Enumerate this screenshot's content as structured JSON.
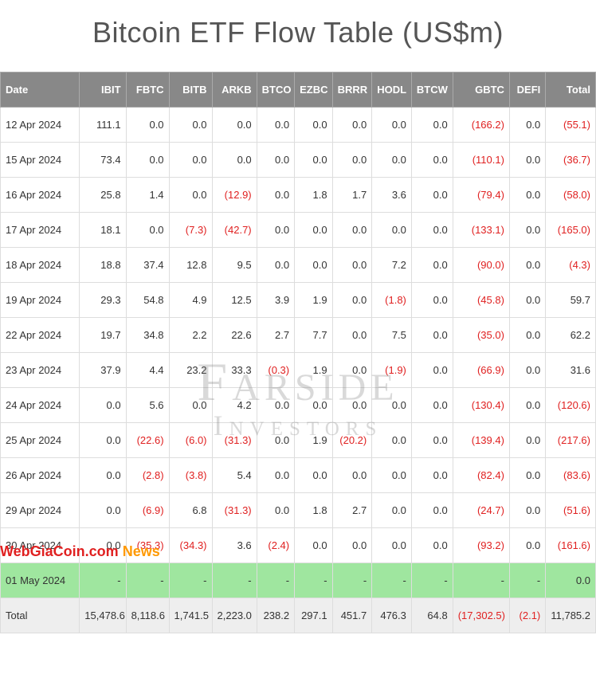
{
  "title": "Bitcoin ETF Flow Table (US$m)",
  "watermark": {
    "line1": "Farside",
    "line2": "Investors"
  },
  "overlay": {
    "brand": "WebGiaCoin.com",
    "news": " News"
  },
  "table": {
    "columns": [
      {
        "key": "date",
        "label": "Date",
        "class": "date-col"
      },
      {
        "key": "ibit",
        "label": "IBIT",
        "class": "c-ibit"
      },
      {
        "key": "fbtc",
        "label": "FBTC",
        "class": "c-fbtc"
      },
      {
        "key": "bitb",
        "label": "BITB",
        "class": "c-bitb"
      },
      {
        "key": "arkb",
        "label": "ARKB",
        "class": "c-arkb"
      },
      {
        "key": "btco",
        "label": "BTCO",
        "class": "c-btco"
      },
      {
        "key": "ezbc",
        "label": "EZBC",
        "class": "c-ezbc"
      },
      {
        "key": "brrr",
        "label": "BRRR",
        "class": "c-brrr"
      },
      {
        "key": "hodl",
        "label": "HODL",
        "class": "c-hodl"
      },
      {
        "key": "btcw",
        "label": "BTCW",
        "class": "c-btcw"
      },
      {
        "key": "gbtc",
        "label": "GBTC",
        "class": "c-gbtc"
      },
      {
        "key": "defi",
        "label": "DEFI",
        "class": "c-defi"
      },
      {
        "key": "total",
        "label": "Total",
        "class": "c-total"
      }
    ],
    "rows": [
      {
        "date": "12 Apr 2024",
        "cells": [
          "111.1",
          "0.0",
          "0.0",
          "0.0",
          "0.0",
          "0.0",
          "0.0",
          "0.0",
          "0.0",
          "(166.2)",
          "0.0",
          "(55.1)"
        ]
      },
      {
        "date": "15 Apr 2024",
        "cells": [
          "73.4",
          "0.0",
          "0.0",
          "0.0",
          "0.0",
          "0.0",
          "0.0",
          "0.0",
          "0.0",
          "(110.1)",
          "0.0",
          "(36.7)"
        ]
      },
      {
        "date": "16 Apr 2024",
        "cells": [
          "25.8",
          "1.4",
          "0.0",
          "(12.9)",
          "0.0",
          "1.8",
          "1.7",
          "3.6",
          "0.0",
          "(79.4)",
          "0.0",
          "(58.0)"
        ]
      },
      {
        "date": "17 Apr 2024",
        "cells": [
          "18.1",
          "0.0",
          "(7.3)",
          "(42.7)",
          "0.0",
          "0.0",
          "0.0",
          "0.0",
          "0.0",
          "(133.1)",
          "0.0",
          "(165.0)"
        ]
      },
      {
        "date": "18 Apr 2024",
        "cells": [
          "18.8",
          "37.4",
          "12.8",
          "9.5",
          "0.0",
          "0.0",
          "0.0",
          "7.2",
          "0.0",
          "(90.0)",
          "0.0",
          "(4.3)"
        ]
      },
      {
        "date": "19 Apr 2024",
        "cells": [
          "29.3",
          "54.8",
          "4.9",
          "12.5",
          "3.9",
          "1.9",
          "0.0",
          "(1.8)",
          "0.0",
          "(45.8)",
          "0.0",
          "59.7"
        ]
      },
      {
        "date": "22 Apr 2024",
        "cells": [
          "19.7",
          "34.8",
          "2.2",
          "22.6",
          "2.7",
          "7.7",
          "0.0",
          "7.5",
          "0.0",
          "(35.0)",
          "0.0",
          "62.2"
        ]
      },
      {
        "date": "23 Apr 2024",
        "cells": [
          "37.9",
          "4.4",
          "23.2",
          "33.3",
          "(0.3)",
          "1.9",
          "0.0",
          "(1.9)",
          "0.0",
          "(66.9)",
          "0.0",
          "31.6"
        ]
      },
      {
        "date": "24 Apr 2024",
        "cells": [
          "0.0",
          "5.6",
          "0.0",
          "4.2",
          "0.0",
          "0.0",
          "0.0",
          "0.0",
          "0.0",
          "(130.4)",
          "0.0",
          "(120.6)"
        ]
      },
      {
        "date": "25 Apr 2024",
        "cells": [
          "0.0",
          "(22.6)",
          "(6.0)",
          "(31.3)",
          "0.0",
          "1.9",
          "(20.2)",
          "0.0",
          "0.0",
          "(139.4)",
          "0.0",
          "(217.6)"
        ]
      },
      {
        "date": "26 Apr 2024",
        "cells": [
          "0.0",
          "(2.8)",
          "(3.8)",
          "5.4",
          "0.0",
          "0.0",
          "0.0",
          "0.0",
          "0.0",
          "(82.4)",
          "0.0",
          "(83.6)"
        ]
      },
      {
        "date": "29 Apr 2024",
        "cells": [
          "0.0",
          "(6.9)",
          "6.8",
          "(31.3)",
          "0.0",
          "1.8",
          "2.7",
          "0.0",
          "0.0",
          "(24.7)",
          "0.0",
          "(51.6)"
        ]
      },
      {
        "date": "30 Apr 2024",
        "cells": [
          "0.0",
          "(35.3)",
          "(34.3)",
          "3.6",
          "(2.4)",
          "0.0",
          "0.0",
          "0.0",
          "0.0",
          "(93.2)",
          "0.0",
          "(161.6)"
        ]
      },
      {
        "date": "01 May 2024",
        "highlight": true,
        "cells": [
          "-",
          "-",
          "-",
          "-",
          "-",
          "-",
          "-",
          "-",
          "-",
          "-",
          "-",
          "0.0"
        ]
      },
      {
        "date": "Total",
        "totalRow": true,
        "cells": [
          "15,478.6",
          "8,118.6",
          "1,741.5",
          "2,223.0",
          "238.2",
          "297.1",
          "451.7",
          "476.3",
          "64.8",
          "(17,302.5)",
          "(2.1)",
          "11,785.2"
        ]
      }
    ]
  },
  "colors": {
    "header_bg": "#888888",
    "header_fg": "#ffffff",
    "cell_border": "#dddddd",
    "negative": "#e02020",
    "highlight_bg": "#9fe69f",
    "total_bg": "#eeeeee",
    "title_color": "#555555",
    "watermark_color": "rgba(120,120,120,0.28)"
  }
}
